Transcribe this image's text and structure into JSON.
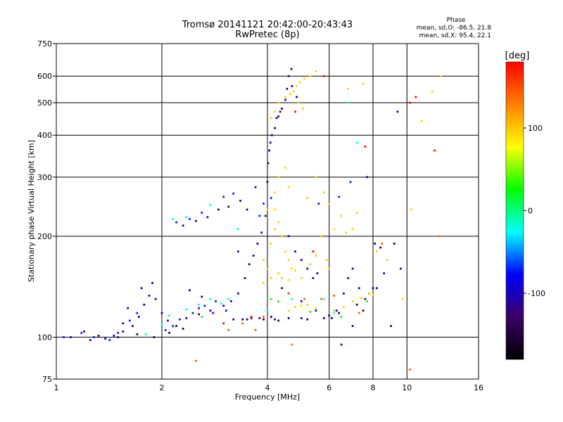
{
  "chart_data": {
    "type": "scatter",
    "title": "Tromsø 20141121 20:42:00-20:43:43",
    "subtitle": "RwPretec (8p)",
    "xlabel": "Frequency [MHz]",
    "ylabel": "Stationary phase Virtual Height [km]",
    "x_scale": "log",
    "y_scale": "log",
    "xlim": [
      1,
      16
    ],
    "ylim": [
      75,
      750
    ],
    "x_ticks": [
      1,
      2,
      4,
      6,
      8,
      10,
      16
    ],
    "y_ticks": [
      75,
      100,
      200,
      300,
      400,
      500,
      600,
      750
    ],
    "grid": true,
    "stats": {
      "heading": "Phase",
      "line_o": "mean, sd,O: -86.5, 21.8",
      "line_x": "mean, sd,X:  95.4, 22.1"
    },
    "colorbar": {
      "label": "[deg]",
      "ticks": [
        100,
        0,
        -100
      ],
      "range": [
        -180,
        180
      ],
      "colors": [
        "#ff0000",
        "#ff8000",
        "#ffff00",
        "#00ff00",
        "#00ffff",
        "#0000ff",
        "#3a0066",
        "#000000"
      ]
    },
    "series": [
      {
        "phase_deg": -115,
        "points": [
          [
            1.1,
            100
          ],
          [
            1.2,
            104
          ],
          [
            1.32,
            101
          ],
          [
            1.38,
            99
          ],
          [
            1.46,
            101
          ],
          [
            1.55,
            104
          ],
          [
            1.65,
            108
          ],
          [
            1.72,
            115
          ],
          [
            1.78,
            125
          ],
          [
            1.84,
            133
          ],
          [
            1.92,
            130
          ],
          [
            2.0,
            118
          ],
          [
            2.08,
            112
          ],
          [
            2.2,
            108
          ],
          [
            2.35,
            114
          ],
          [
            2.55,
            117
          ],
          [
            2.75,
            120
          ],
          [
            3.0,
            124
          ],
          [
            3.15,
            128
          ],
          [
            3.3,
            135
          ],
          [
            3.45,
            150
          ],
          [
            3.55,
            165
          ],
          [
            3.65,
            175
          ],
          [
            3.75,
            190
          ],
          [
            3.85,
            205
          ],
          [
            3.95,
            230
          ],
          [
            4.0,
            290
          ],
          [
            4.02,
            330
          ],
          [
            4.05,
            360
          ],
          [
            4.08,
            380
          ],
          [
            4.12,
            400
          ],
          [
            4.2,
            420
          ],
          [
            4.3,
            455
          ],
          [
            4.4,
            480
          ],
          [
            4.5,
            510
          ],
          [
            4.55,
            550
          ],
          [
            4.6,
            600
          ],
          [
            4.68,
            630
          ],
          [
            4.25,
            450
          ],
          [
            4.35,
            470
          ],
          [
            4.7,
            560
          ],
          [
            4.85,
            520
          ],
          [
            4.6,
            200
          ],
          [
            4.8,
            180
          ],
          [
            5.0,
            170
          ],
          [
            5.2,
            160
          ],
          [
            5.4,
            150
          ],
          [
            5.55,
            155
          ],
          [
            4.4,
            140
          ],
          [
            4.6,
            135
          ],
          [
            5.0,
            128
          ],
          [
            5.5,
            120
          ],
          [
            6.0,
            116
          ],
          [
            6.3,
            120
          ],
          [
            6.6,
            135
          ],
          [
            6.8,
            150
          ],
          [
            7.0,
            160
          ],
          [
            7.3,
            140
          ],
          [
            7.6,
            130
          ],
          [
            7.8,
            135
          ],
          [
            8.0,
            140
          ],
          [
            8.2,
            140
          ],
          [
            3.2,
            113
          ],
          [
            3.5,
            113
          ],
          [
            3.8,
            114
          ],
          [
            4.2,
            113
          ],
          [
            4.6,
            114
          ],
          [
            5.0,
            114
          ],
          [
            6.5,
            95
          ],
          [
            7.0,
            108
          ],
          [
            7.5,
            120
          ],
          [
            7.7,
            300
          ],
          [
            8.6,
            155
          ],
          [
            9.0,
            108
          ],
          [
            9.4,
            470
          ],
          [
            3.3,
            180
          ],
          [
            3.5,
            240
          ],
          [
            3.7,
            280
          ],
          [
            2.3,
            215
          ],
          [
            2.5,
            222
          ],
          [
            2.7,
            228
          ],
          [
            2.9,
            240
          ],
          [
            3.1,
            245
          ],
          [
            3.35,
            255
          ],
          [
            1.6,
            122
          ],
          [
            1.55,
            110
          ],
          [
            1.75,
            140
          ],
          [
            1.88,
            145
          ],
          [
            2.4,
            138
          ],
          [
            2.6,
            132
          ]
        ]
      },
      {
        "phase_deg": -135,
        "points": [
          [
            1.25,
            98
          ],
          [
            1.5,
            100
          ],
          [
            1.7,
            102
          ],
          [
            1.9,
            100
          ],
          [
            2.1,
            103
          ],
          [
            2.3,
            106
          ],
          [
            3.4,
            113
          ],
          [
            3.6,
            114
          ],
          [
            3.9,
            113
          ],
          [
            4.1,
            115
          ],
          [
            4.3,
            112
          ],
          [
            5.2,
            113
          ],
          [
            5.8,
            114
          ],
          [
            6.1,
            114
          ],
          [
            6.4,
            118
          ],
          [
            7.2,
            125
          ],
          [
            8.1,
            190
          ],
          [
            8.4,
            185
          ],
          [
            9.6,
            160
          ],
          [
            9.2,
            190
          ]
        ]
      },
      {
        "phase_deg": -70,
        "points": [
          [
            1.05,
            100
          ],
          [
            1.18,
            103
          ],
          [
            1.28,
            100
          ],
          [
            1.42,
            98
          ],
          [
            1.5,
            103
          ],
          [
            1.62,
            112
          ],
          [
            1.7,
            118
          ],
          [
            2.05,
            105
          ],
          [
            2.15,
            108
          ],
          [
            2.25,
            113
          ],
          [
            2.45,
            118
          ],
          [
            2.65,
            124
          ],
          [
            2.85,
            128
          ],
          [
            2.55,
            122
          ],
          [
            2.8,
            118
          ],
          [
            3.05,
            120
          ],
          [
            2.2,
            220
          ],
          [
            2.4,
            225
          ],
          [
            2.6,
            235
          ],
          [
            3.0,
            262
          ],
          [
            3.2,
            268
          ],
          [
            3.8,
            230
          ],
          [
            3.9,
            250
          ],
          [
            4.1,
            260
          ],
          [
            5.6,
            250
          ],
          [
            6.4,
            262
          ],
          [
            6.9,
            290
          ]
        ]
      },
      {
        "phase_deg": 95,
        "points": [
          [
            4.1,
            450
          ],
          [
            4.2,
            470
          ],
          [
            4.3,
            500
          ],
          [
            4.5,
            520
          ],
          [
            4.65,
            530
          ],
          [
            4.75,
            540
          ],
          [
            4.85,
            560
          ],
          [
            4.95,
            575
          ],
          [
            5.1,
            590
          ],
          [
            5.3,
            600
          ],
          [
            5.5,
            620
          ],
          [
            4.9,
            500
          ],
          [
            5.05,
            480
          ],
          [
            4.2,
            240
          ],
          [
            4.3,
            220
          ],
          [
            4.4,
            200
          ],
          [
            4.5,
            180
          ],
          [
            4.6,
            170
          ],
          [
            4.7,
            160
          ],
          [
            4.8,
            158
          ],
          [
            4.4,
            150
          ],
          [
            4.6,
            148
          ],
          [
            5.0,
            150
          ],
          [
            5.3,
            165
          ],
          [
            5.5,
            175
          ],
          [
            5.7,
            200
          ],
          [
            5.9,
            170
          ],
          [
            6.0,
            160
          ],
          [
            3.9,
            170
          ],
          [
            4.0,
            160
          ],
          [
            4.1,
            190
          ],
          [
            4.2,
            210
          ],
          [
            6.2,
            210
          ],
          [
            6.5,
            230
          ],
          [
            6.7,
            205
          ],
          [
            4.6,
            120
          ],
          [
            4.8,
            123
          ],
          [
            5.0,
            124
          ],
          [
            5.2,
            125
          ],
          [
            5.5,
            122
          ],
          [
            6.2,
            120
          ],
          [
            6.6,
            123
          ],
          [
            7.0,
            128
          ],
          [
            7.4,
            131
          ],
          [
            7.8,
            135
          ],
          [
            8.0,
            134
          ],
          [
            3.9,
            145
          ],
          [
            4.1,
            150
          ],
          [
            4.3,
            155
          ],
          [
            4.0,
            240
          ],
          [
            4.2,
            270
          ],
          [
            4.3,
            300
          ],
          [
            4.5,
            320
          ],
          [
            4.6,
            280
          ],
          [
            8.2,
            180
          ],
          [
            11.0,
            440
          ],
          [
            11.8,
            540
          ],
          [
            12.5,
            600
          ],
          [
            5.2,
            260
          ],
          [
            5.5,
            300
          ],
          [
            5.8,
            270
          ],
          [
            6.0,
            250
          ],
          [
            7.0,
            210
          ],
          [
            7.2,
            235
          ],
          [
            6.8,
            550
          ],
          [
            7.5,
            570
          ],
          [
            8.8,
            170
          ],
          [
            9.7,
            130
          ],
          [
            10.3,
            240
          ]
        ]
      },
      {
        "phase_deg": 140,
        "points": [
          [
            2.5,
            85
          ],
          [
            3.1,
            105
          ],
          [
            3.7,
            105
          ],
          [
            3.9,
            115
          ],
          [
            4.6,
            135
          ],
          [
            5.1,
            130
          ],
          [
            5.7,
            130
          ],
          [
            6.2,
            133
          ],
          [
            7.3,
            118
          ],
          [
            8.5,
            190
          ],
          [
            10.2,
            80
          ],
          [
            12.3,
            200
          ],
          [
            4.7,
            95
          ],
          [
            3.4,
            110
          ]
        ]
      },
      {
        "phase_deg": 30,
        "points": [
          [
            4.1,
            130
          ],
          [
            4.3,
            128
          ],
          [
            5.3,
            119
          ],
          [
            6.5,
            115
          ],
          [
            7.7,
            128
          ],
          [
            2.6,
            115
          ]
        ]
      },
      {
        "phase_deg": -20,
        "points": [
          [
            1.8,
            102
          ],
          [
            2.0,
            109
          ],
          [
            2.1,
            116
          ],
          [
            2.35,
            121
          ],
          [
            2.55,
            125
          ],
          [
            2.75,
            130
          ],
          [
            2.95,
            126
          ],
          [
            3.1,
            130
          ],
          [
            3.3,
            210
          ],
          [
            2.15,
            225
          ],
          [
            2.35,
            228
          ],
          [
            2.75,
            248
          ],
          [
            4.0,
            120
          ],
          [
            4.7,
            130
          ],
          [
            6.8,
            500
          ],
          [
            7.2,
            380
          ],
          [
            5.8,
            130
          ],
          [
            6.2,
            118
          ]
        ]
      },
      {
        "phase_deg": 175,
        "points": [
          [
            3.0,
            110
          ],
          [
            3.6,
            115
          ],
          [
            4.8,
            470
          ],
          [
            5.4,
            180
          ],
          [
            5.8,
            600
          ],
          [
            7.6,
            370
          ],
          [
            10.2,
            500
          ],
          [
            10.6,
            520
          ],
          [
            12.0,
            360
          ]
        ]
      }
    ]
  }
}
